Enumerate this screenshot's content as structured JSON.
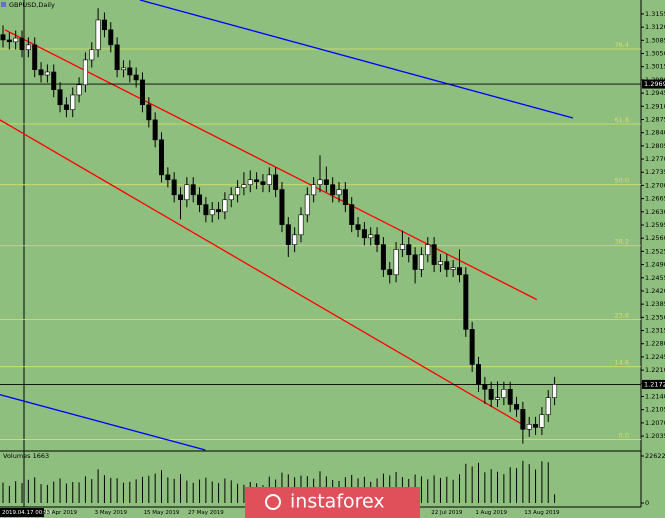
{
  "chart_data": [
    {
      "type": "candlestick",
      "title": "GBPUSD,Daily",
      "up_color": "#ffffff",
      "down_color": "#000000",
      "categories": [
        "2019.04.17 00:00",
        null,
        null,
        null,
        null,
        null,
        null,
        null,
        null,
        "23 Apr 2019",
        null,
        null,
        null,
        null,
        null,
        null,
        null,
        "3 May 2019",
        null,
        null,
        null,
        null,
        null,
        null,
        null,
        "15 May 2019",
        null,
        null,
        null,
        null,
        null,
        null,
        "27 May 2019",
        null,
        null,
        null,
        null,
        null,
        null,
        null,
        null,
        null,
        null,
        null,
        null,
        null,
        null,
        null,
        null,
        null,
        null,
        null,
        null,
        null,
        null,
        null,
        null,
        null,
        null,
        null,
        null,
        null,
        null,
        null,
        null,
        null,
        null,
        null,
        null,
        null,
        "22 Jul 2019",
        null,
        null,
        null,
        null,
        null,
        null,
        "1 Aug 2019",
        null,
        null,
        null,
        null,
        null,
        null,
        null,
        "13 Aug 2019",
        null,
        null
      ],
      "candles": [
        [
          1.31,
          1.3125,
          1.3066,
          1.3086
        ],
        [
          1.3086,
          1.3106,
          1.3061,
          1.3081
        ],
        [
          1.3081,
          1.3111,
          1.3061,
          1.3091
        ],
        [
          1.3091,
          1.3111,
          1.304,
          1.306
        ],
        [
          1.306,
          1.3093,
          1.304,
          1.3073
        ],
        [
          1.3073,
          1.3093,
          1.2987,
          1.3007
        ],
        [
          1.3007,
          1.3027,
          1.2973,
          1.2993
        ],
        [
          1.2993,
          1.3021,
          1.2973,
          1.3001
        ],
        [
          1.3001,
          1.3021,
          1.2934,
          1.2954
        ],
        [
          1.2954,
          1.2974,
          1.2894,
          1.2914
        ],
        [
          1.2914,
          1.2934,
          1.2881,
          1.2901
        ],
        [
          1.2901,
          1.296,
          1.2881,
          1.294
        ],
        [
          1.294,
          1.2987,
          1.292,
          1.2967
        ],
        [
          1.2967,
          1.3053,
          1.2947,
          1.3033
        ],
        [
          1.3033,
          1.308,
          1.3013,
          1.306
        ],
        [
          1.306,
          1.317,
          1.304,
          1.3139
        ],
        [
          1.3139,
          1.3159,
          1.3093,
          1.3113
        ],
        [
          1.3113,
          1.3133,
          1.3053,
          1.3073
        ],
        [
          1.3073,
          1.3093,
          1.2987,
          1.3007
        ],
        [
          1.3007,
          1.3032,
          1.2987,
          1.3012
        ],
        [
          1.3012,
          1.3032,
          1.2973,
          1.2993
        ],
        [
          1.2993,
          1.3013,
          1.296,
          1.298
        ],
        [
          1.298,
          1.3,
          1.2894,
          1.2914
        ],
        [
          1.2914,
          1.2934,
          1.2854,
          1.2874
        ],
        [
          1.2874,
          1.2894,
          1.2801,
          1.2821
        ],
        [
          1.2821,
          1.2841,
          1.2708,
          1.2728
        ],
        [
          1.2728,
          1.2748,
          1.2695,
          1.2715
        ],
        [
          1.2715,
          1.2735,
          1.2655,
          1.2675
        ],
        [
          1.2675,
          1.2695,
          1.261,
          1.2662
        ],
        [
          1.2662,
          1.2722,
          1.2642,
          1.2702
        ],
        [
          1.2702,
          1.2722,
          1.2655,
          1.2675
        ],
        [
          1.2675,
          1.2695,
          1.2629,
          1.2649
        ],
        [
          1.2649,
          1.2669,
          1.2602,
          1.2622
        ],
        [
          1.2622,
          1.2656,
          1.2602,
          1.2636
        ],
        [
          1.2636,
          1.2656,
          1.261,
          1.263
        ],
        [
          1.263,
          1.2682,
          1.261,
          1.2662
        ],
        [
          1.2662,
          1.2695,
          1.2642,
          1.2675
        ],
        [
          1.2675,
          1.2714,
          1.2655,
          1.2694
        ],
        [
          1.2694,
          1.2735,
          1.2674,
          1.2702
        ],
        [
          1.2702,
          1.274,
          1.2682,
          1.2715
        ],
        [
          1.2715,
          1.2735,
          1.269,
          1.271
        ],
        [
          1.271,
          1.273,
          1.2682,
          1.2702
        ],
        [
          1.2702,
          1.2748,
          1.2682,
          1.2728
        ],
        [
          1.2728,
          1.2748,
          1.2669,
          1.2689
        ],
        [
          1.2689,
          1.2709,
          1.2576,
          1.2596
        ],
        [
          1.2596,
          1.2616,
          1.251,
          1.2543
        ],
        [
          1.2543,
          1.2589,
          1.2523,
          1.2569
        ],
        [
          1.2569,
          1.2642,
          1.2549,
          1.2622
        ],
        [
          1.2622,
          1.2695,
          1.2602,
          1.2675
        ],
        [
          1.2675,
          1.2722,
          1.2655,
          1.2702
        ],
        [
          1.2702,
          1.278,
          1.2682,
          1.2715
        ],
        [
          1.2715,
          1.275,
          1.2682,
          1.2702
        ],
        [
          1.2702,
          1.2722,
          1.2655,
          1.2675
        ],
        [
          1.2675,
          1.2709,
          1.2655,
          1.2689
        ],
        [
          1.2689,
          1.2709,
          1.2629,
          1.2649
        ],
        [
          1.2649,
          1.2669,
          1.2576,
          1.2596
        ],
        [
          1.2596,
          1.2616,
          1.2563,
          1.2583
        ],
        [
          1.2583,
          1.2603,
          1.2541,
          1.2561
        ],
        [
          1.2561,
          1.2589,
          1.2541,
          1.2569
        ],
        [
          1.2569,
          1.2589,
          1.2523,
          1.2543
        ],
        [
          1.2543,
          1.2563,
          1.2457,
          1.2477
        ],
        [
          1.2477,
          1.2497,
          1.244,
          1.2463
        ],
        [
          1.2463,
          1.255,
          1.2443,
          1.253
        ],
        [
          1.253,
          1.258,
          1.251,
          1.2543
        ],
        [
          1.2543,
          1.2563,
          1.2496,
          1.2516
        ],
        [
          1.2516,
          1.2536,
          1.244,
          1.2477
        ],
        [
          1.2477,
          1.2536,
          1.2457,
          1.2516
        ],
        [
          1.2516,
          1.2563,
          1.2496,
          1.2543
        ],
        [
          1.2543,
          1.2563,
          1.247,
          1.249
        ],
        [
          1.249,
          1.2518,
          1.247,
          1.2498
        ],
        [
          1.2498,
          1.2518,
          1.2457,
          1.2477
        ],
        [
          1.2477,
          1.2502,
          1.2457,
          1.2482
        ],
        [
          1.2482,
          1.253,
          1.2443,
          1.2463
        ],
        [
          1.2463,
          1.2483,
          1.2298,
          1.2318
        ],
        [
          1.2318,
          1.2338,
          1.2205,
          1.2225
        ],
        [
          1.2225,
          1.2245,
          1.2152,
          1.2172
        ],
        [
          1.2172,
          1.2192,
          1.212,
          1.2159
        ],
        [
          1.2159,
          1.2179,
          1.2112,
          1.2132
        ],
        [
          1.2132,
          1.218,
          1.2112,
          1.2137
        ],
        [
          1.2137,
          1.2179,
          1.2117,
          1.2159
        ],
        [
          1.2159,
          1.2179,
          1.2099,
          1.2119
        ],
        [
          1.2119,
          1.2139,
          1.2086,
          1.2106
        ],
        [
          1.2106,
          1.2126,
          1.2015,
          1.2053
        ],
        [
          1.2053,
          1.2086,
          1.2033,
          1.2066
        ],
        [
          1.2066,
          1.2086,
          1.2038,
          1.2058
        ],
        [
          1.2058,
          1.2112,
          1.2038,
          1.2092
        ],
        [
          1.2092,
          1.2157,
          1.2072,
          1.2137
        ],
        [
          1.2137,
          1.2192,
          1.2117,
          1.2172
        ]
      ],
      "ylim": [
        1.1998,
        1.3192
      ],
      "yticks": [
        1.3155,
        {
          "value": 1.312,
          "label": "1.3120"
        },
        1.3085,
        {
          "value": 1.305,
          "label": "1.3050"
        },
        1.3015,
        {
          "value": 1.298,
          "label": "1.2980"
        },
        1.2945,
        {
          "value": 1.291,
          "label": "1.2910"
        },
        1.2875,
        {
          "value": 1.284,
          "label": "1.2840"
        },
        1.2805,
        {
          "value": 1.277,
          "label": "1.2770"
        },
        1.2735,
        {
          "value": 1.27,
          "label": "1.2700"
        },
        1.2665,
        {
          "value": 1.263,
          "label": "1.2630"
        },
        1.2595,
        {
          "value": 1.256,
          "label": "1.2560"
        },
        1.2525,
        {
          "value": 1.249,
          "label": "1.2490"
        },
        1.2455,
        {
          "value": 1.242,
          "label": "1.2420"
        },
        1.2385,
        {
          "value": 1.235,
          "label": "1.2350"
        },
        1.2315,
        {
          "value": 1.228,
          "label": "1.2280"
        },
        1.2245,
        {
          "value": 1.221,
          "label": "1.2210"
        },
        1.2175,
        {
          "value": 1.214,
          "label": "1.2140"
        },
        1.2105,
        {
          "value": 1.207,
          "label": "1.2070"
        },
        1.2035
      ],
      "price_lines": [
        1.2969,
        1.2172
      ],
      "levels": [
        {
          "value": 1.3062,
          "label": "76.4"
        },
        {
          "value": 1.2863,
          "label": "61.8"
        },
        {
          "value": 1.2702,
          "label": "50.0"
        },
        {
          "value": 1.254,
          "label": "38.2"
        },
        {
          "value": 1.2344,
          "label": "23.6"
        },
        {
          "value": 1.2219,
          "label": "14.6"
        },
        {
          "value": 1.2026,
          "label": "0.0"
        }
      ],
      "level_color": "#d8e060",
      "trendlines": [
        {
          "color": "#ff0000",
          "points": [
            [
              0.3,
              1.3113
            ],
            [
              84.2,
              1.2397
            ]
          ]
        },
        {
          "color": "#ff0000",
          "points": [
            [
              -0.5,
              1.2874
            ],
            [
              81.9,
              1.2066
            ]
          ]
        },
        {
          "color": "#0000ff",
          "points": [
            [
              21.6,
              1.3192
            ],
            [
              89.9,
              1.2879
            ]
          ]
        },
        {
          "color": "#0000ff",
          "points": [
            [
              -0.5,
              1.2145
            ],
            [
              31.9,
              1.1998
            ]
          ]
        }
      ]
    },
    {
      "type": "bar",
      "title": "Volumes 1663",
      "color": "#000000",
      "values": [
        9800,
        8200,
        10500,
        9600,
        11200,
        12400,
        9100,
        8700,
        10300,
        11800,
        9400,
        10100,
        9900,
        12800,
        11500,
        16200,
        13400,
        12100,
        11900,
        9800,
        10200,
        11400,
        12600,
        13100,
        14200,
        15800,
        12300,
        11600,
        13900,
        10800,
        9700,
        11300,
        12200,
        10400,
        9600,
        11800,
        10900,
        9300,
        8800,
        10100,
        9500,
        8600,
        12700,
        11300,
        14600,
        13800,
        12400,
        13200,
        12900,
        11700,
        15300,
        12800,
        11100,
        10600,
        12400,
        13500,
        11900,
        12600,
        10200,
        11800,
        14100,
        13300,
        14900,
        12500,
        11600,
        13700,
        12800,
        11400,
        13300,
        12100,
        12600,
        11200,
        13800,
        18900,
        17600,
        19400,
        14800,
        16300,
        15100,
        13900,
        17200,
        16800,
        20300,
        18700,
        16100,
        20100,
        19600,
        4200
      ],
      "ylim": [
        0,
        22622
      ],
      "yticks": [
        22622,
        0
      ]
    }
  ],
  "watermark": "instaforex"
}
